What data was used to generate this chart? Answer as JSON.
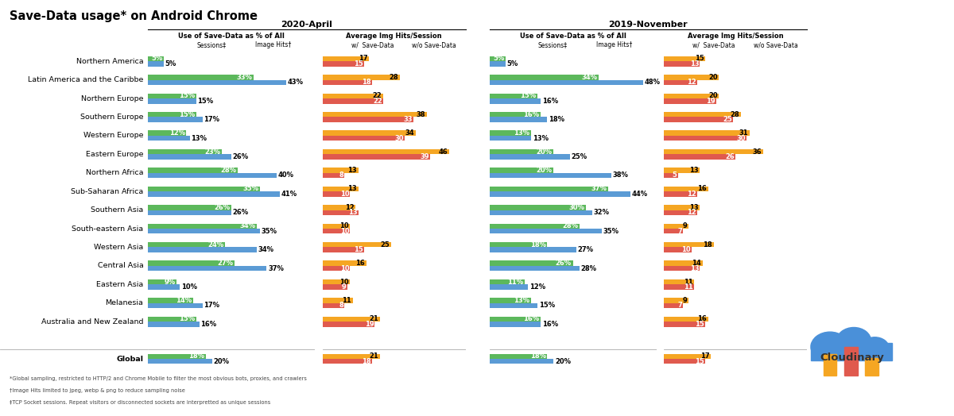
{
  "title": "Save-Data usage* on Android Chrome",
  "regions": [
    "Northern America",
    "Latin America and the Caribbe",
    "Northern Europe",
    "Southern Europe",
    "Western Europe",
    "Eastern Europe",
    "Northern Africa",
    "Sub-Saharan Africa",
    "Southern Asia",
    "South-eastern Asia",
    "Western Asia",
    "Central Asia",
    "Eastern Asia",
    "Melanesia",
    "Australia and New Zealand",
    "",
    "Global"
  ],
  "apr2020": {
    "sessions": [
      5,
      33,
      15,
      15,
      12,
      23,
      28,
      35,
      26,
      34,
      24,
      27,
      9,
      14,
      15,
      0,
      18
    ],
    "image_hits": [
      5,
      43,
      15,
      17,
      13,
      26,
      40,
      41,
      26,
      35,
      34,
      37,
      10,
      17,
      16,
      0,
      20
    ],
    "save_data_hits": [
      17,
      28,
      22,
      38,
      34,
      46,
      13,
      13,
      12,
      10,
      25,
      16,
      10,
      11,
      21,
      0,
      21
    ],
    "no_save_data_hits": [
      15,
      18,
      22,
      33,
      30,
      39,
      8,
      10,
      13,
      10,
      15,
      10,
      9,
      8,
      19,
      0,
      18
    ]
  },
  "nov2019": {
    "sessions": [
      5,
      34,
      15,
      16,
      13,
      20,
      20,
      37,
      30,
      28,
      18,
      26,
      11,
      13,
      16,
      0,
      18
    ],
    "image_hits": [
      5,
      48,
      16,
      18,
      13,
      25,
      38,
      44,
      32,
      35,
      27,
      28,
      12,
      15,
      16,
      0,
      20
    ],
    "save_data_hits": [
      15,
      20,
      20,
      28,
      31,
      36,
      13,
      16,
      13,
      9,
      18,
      14,
      11,
      9,
      16,
      0,
      17
    ],
    "no_save_data_hits": [
      13,
      12,
      19,
      25,
      30,
      26,
      5,
      12,
      12,
      7,
      10,
      13,
      11,
      7,
      15,
      0,
      15
    ]
  },
  "colors": {
    "sessions_bar": "#5cb85c",
    "image_hits_bar": "#5b9bd5",
    "save_data_bar": "#f5a623",
    "no_save_data_bar": "#e05a4e",
    "background": "#ffffff"
  },
  "footnotes": [
    "*Global sampling, restricted to HTTP/2 and Chrome Mobile to filter the most obvious bots, proxies, and crawlers",
    "†Image Hits limited to jpeg, webp & png to reduce sampling noise",
    "‡TCP Socket sessions. Repeat visitors or disconnected sockets are interpretted as unique sessions"
  ]
}
